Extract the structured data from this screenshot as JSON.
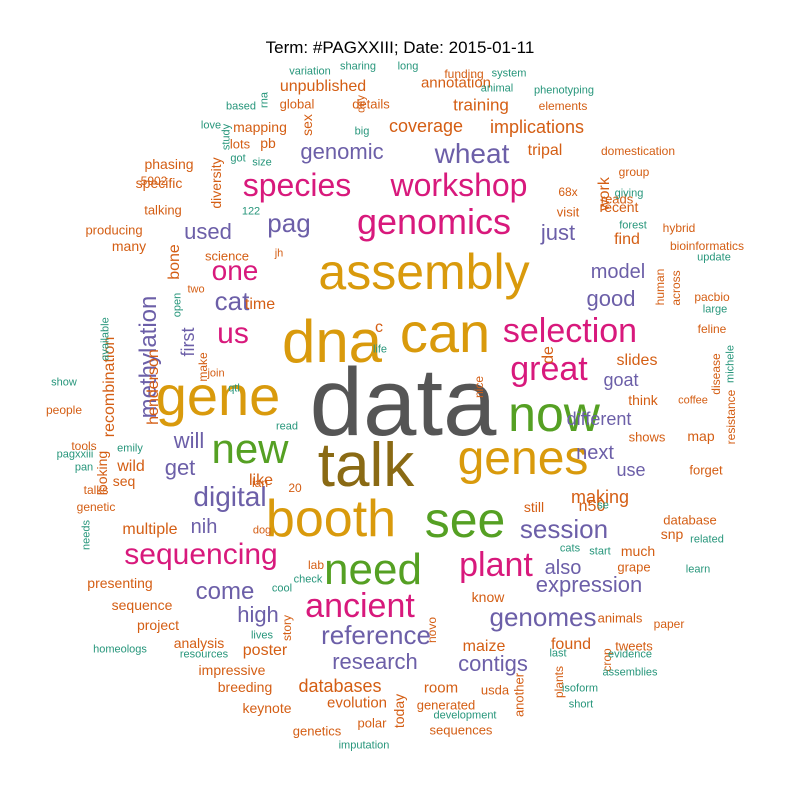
{
  "title": "Term: #PAGXXIII; Date: 2015-01-11",
  "colors": {
    "dark_gray": "#555555",
    "brown": "#8a6a14",
    "gold": "#d99a0c",
    "green": "#55a023",
    "magenta": "#d8197c",
    "purple": "#6c5fa8",
    "orange": "#d45e14",
    "teal": "#27967b"
  },
  "words": [
    {
      "text": "data",
      "color": "dark_gray",
      "weight": 10
    },
    {
      "text": "talk",
      "color": "brown",
      "weight": 7
    },
    {
      "text": "assembly",
      "color": "gold",
      "weight": 7
    },
    {
      "text": "dna",
      "color": "gold",
      "weight": 7
    },
    {
      "text": "can",
      "color": "gold",
      "weight": 7
    },
    {
      "text": "gene",
      "color": "gold",
      "weight": 6
    },
    {
      "text": "booth",
      "color": "gold",
      "weight": 6
    },
    {
      "text": "genes",
      "color": "gold",
      "weight": 6
    },
    {
      "text": "now",
      "color": "green",
      "weight": 6
    },
    {
      "text": "see",
      "color": "green",
      "weight": 6
    },
    {
      "text": "need",
      "color": "green",
      "weight": 5
    },
    {
      "text": "new",
      "color": "green",
      "weight": 5
    },
    {
      "text": "genomics",
      "color": "magenta",
      "weight": 5
    },
    {
      "text": "species",
      "color": "magenta",
      "weight": 4
    },
    {
      "text": "workshop",
      "color": "magenta",
      "weight": 4
    },
    {
      "text": "selection",
      "color": "magenta",
      "weight": 4
    },
    {
      "text": "great",
      "color": "magenta",
      "weight": 4
    },
    {
      "text": "ancient",
      "color": "magenta",
      "weight": 4
    },
    {
      "text": "plant",
      "color": "magenta",
      "weight": 4
    },
    {
      "text": "sequencing",
      "color": "magenta",
      "weight": 4
    },
    {
      "text": "one",
      "color": "magenta",
      "weight": 4
    },
    {
      "text": "us",
      "color": "magenta",
      "weight": 4
    },
    {
      "text": "session",
      "color": "purple",
      "weight": 3
    },
    {
      "text": "methylation",
      "color": "purple",
      "weight": 3
    },
    {
      "text": "wheat",
      "color": "purple",
      "weight": 3
    },
    {
      "text": "digital",
      "color": "purple",
      "weight": 3
    },
    {
      "text": "reference",
      "color": "purple",
      "weight": 3
    },
    {
      "text": "genomes",
      "color": "purple",
      "weight": 3
    },
    {
      "text": "cat",
      "color": "purple",
      "weight": 3
    },
    {
      "text": "pag",
      "color": "purple",
      "weight": 3
    },
    {
      "text": "genomic",
      "color": "purple",
      "weight": 3
    },
    {
      "text": "research",
      "color": "purple",
      "weight": 3
    },
    {
      "text": "contigs",
      "color": "purple",
      "weight": 3
    },
    {
      "text": "come",
      "color": "purple",
      "weight": 3
    },
    {
      "text": "will",
      "color": "purple",
      "weight": 3
    },
    {
      "text": "get",
      "color": "purple",
      "weight": 3
    },
    {
      "text": "high",
      "color": "purple",
      "weight": 3
    },
    {
      "text": "expression",
      "color": "purple",
      "weight": 3
    },
    {
      "text": "good",
      "color": "purple",
      "weight": 3
    },
    {
      "text": "different",
      "color": "purple",
      "weight": 2
    },
    {
      "text": "used",
      "color": "purple",
      "weight": 2
    },
    {
      "text": "just",
      "color": "purple",
      "weight": 2
    },
    {
      "text": "also",
      "color": "purple",
      "weight": 2
    },
    {
      "text": "model",
      "color": "purple",
      "weight": 2
    },
    {
      "text": "goat",
      "color": "purple",
      "weight": 2
    },
    {
      "text": "next",
      "color": "purple",
      "weight": 2
    },
    {
      "text": "use",
      "color": "purple",
      "weight": 2
    },
    {
      "text": "nih",
      "color": "purple",
      "weight": 2
    },
    {
      "text": "first",
      "color": "purple",
      "weight": 2
    },
    {
      "text": "databases",
      "color": "orange",
      "weight": 2
    },
    {
      "text": "coverage",
      "color": "orange",
      "weight": 2
    },
    {
      "text": "implications",
      "color": "orange",
      "weight": 2
    },
    {
      "text": "annotation",
      "color": "orange",
      "weight": 2
    },
    {
      "text": "training",
      "color": "orange",
      "weight": 2
    },
    {
      "text": "unpublished",
      "color": "orange",
      "weight": 2
    },
    {
      "text": "henderson",
      "color": "orange",
      "weight": 2
    },
    {
      "text": "recombination",
      "color": "orange",
      "weight": 2
    },
    {
      "text": "sequence",
      "color": "orange",
      "weight": 2
    },
    {
      "text": "making",
      "color": "orange",
      "weight": 2
    },
    {
      "text": "poster",
      "color": "orange",
      "weight": 2
    },
    {
      "text": "maize",
      "color": "orange",
      "weight": 2
    },
    {
      "text": "evolution",
      "color": "orange",
      "weight": 2
    },
    {
      "text": "keynote",
      "color": "orange",
      "weight": 2
    },
    {
      "text": "breeding",
      "color": "orange",
      "weight": 2
    },
    {
      "text": "impressive",
      "color": "orange",
      "weight": 2
    },
    {
      "text": "analysis",
      "color": "orange",
      "weight": 2
    },
    {
      "text": "project",
      "color": "orange",
      "weight": 2
    },
    {
      "text": "presenting",
      "color": "orange",
      "weight": 2
    },
    {
      "text": "multiple",
      "color": "orange",
      "weight": 2
    },
    {
      "text": "mapping",
      "color": "orange",
      "weight": 2
    },
    {
      "text": "specific",
      "color": "orange",
      "weight": 2
    },
    {
      "text": "phasing",
      "color": "orange",
      "weight": 2
    },
    {
      "text": "talking",
      "color": "orange",
      "weight": 1
    },
    {
      "text": "producing",
      "color": "orange",
      "weight": 1
    },
    {
      "text": "many",
      "color": "orange",
      "weight": 2
    },
    {
      "text": "science",
      "color": "orange",
      "weight": 1
    },
    {
      "text": "time",
      "color": "orange",
      "weight": 2
    },
    {
      "text": "bone",
      "color": "orange",
      "weight": 2
    },
    {
      "text": "diversity",
      "color": "orange",
      "weight": 2
    },
    {
      "text": "wild",
      "color": "orange",
      "weight": 2
    },
    {
      "text": "seq",
      "color": "orange",
      "weight": 2
    },
    {
      "text": "like",
      "color": "orange",
      "weight": 2
    },
    {
      "text": "looking",
      "color": "orange",
      "weight": 2
    },
    {
      "text": "slides",
      "color": "orange",
      "weight": 2
    },
    {
      "text": "find",
      "color": "orange",
      "weight": 2
    },
    {
      "text": "work",
      "color": "orange",
      "weight": 2
    },
    {
      "text": "tripal",
      "color": "orange",
      "weight": 2
    },
    {
      "text": "pb",
      "color": "orange",
      "weight": 2
    },
    {
      "text": "sex",
      "color": "orange",
      "weight": 2
    },
    {
      "text": "details",
      "color": "orange",
      "weight": 1
    },
    {
      "text": "global",
      "color": "orange",
      "weight": 1
    },
    {
      "text": "lots",
      "color": "orange",
      "weight": 1
    },
    {
      "text": "recent",
      "color": "orange",
      "weight": 1
    },
    {
      "text": "visit",
      "color": "orange",
      "weight": 1
    },
    {
      "text": "much",
      "color": "orange",
      "weight": 2
    },
    {
      "text": "know",
      "color": "orange",
      "weight": 2
    },
    {
      "text": "found",
      "color": "orange",
      "weight": 2
    },
    {
      "text": "room",
      "color": "orange",
      "weight": 2
    },
    {
      "text": "generated",
      "color": "orange",
      "weight": 1
    },
    {
      "text": "usda",
      "color": "orange",
      "weight": 1
    },
    {
      "text": "today",
      "color": "orange",
      "weight": 1
    },
    {
      "text": "another",
      "color": "orange",
      "weight": 1
    },
    {
      "text": "genetics",
      "color": "orange",
      "weight": 1
    },
    {
      "text": "sequences",
      "color": "orange",
      "weight": 1
    },
    {
      "text": "polar",
      "color": "orange",
      "weight": 1
    },
    {
      "text": "story",
      "color": "orange",
      "weight": 1
    },
    {
      "text": "novo",
      "color": "orange",
      "weight": 1
    },
    {
      "text": "still",
      "color": "orange",
      "weight": 2
    },
    {
      "text": "n50",
      "color": "orange",
      "weight": 2
    },
    {
      "text": "de",
      "color": "orange",
      "weight": 2
    },
    {
      "text": "c",
      "color": "orange",
      "weight": 2
    },
    {
      "text": "grape",
      "color": "orange",
      "weight": 1
    },
    {
      "text": "database",
      "color": "orange",
      "weight": 1
    },
    {
      "text": "snp",
      "color": "orange",
      "weight": 1
    },
    {
      "text": "animals",
      "color": "orange",
      "weight": 1
    },
    {
      "text": "paper",
      "color": "orange",
      "weight": 1
    },
    {
      "text": "shows",
      "color": "orange",
      "weight": 1
    },
    {
      "text": "map",
      "color": "orange",
      "weight": 1
    },
    {
      "text": "forget",
      "color": "orange",
      "weight": 1
    },
    {
      "text": "think",
      "color": "orange",
      "weight": 1
    },
    {
      "text": "nice",
      "color": "orange",
      "weight": 1
    },
    {
      "text": "tweets",
      "color": "orange",
      "weight": 1
    },
    {
      "text": "crop",
      "color": "orange",
      "weight": 1
    },
    {
      "text": "plants",
      "color": "orange",
      "weight": 1
    },
    {
      "text": "human",
      "color": "orange",
      "weight": 1
    },
    {
      "text": "across",
      "color": "orange",
      "weight": 1
    },
    {
      "text": "disease",
      "color": "orange",
      "weight": 1
    },
    {
      "text": "resistance",
      "color": "orange",
      "weight": 1
    },
    {
      "text": "feline",
      "color": "orange",
      "weight": 1
    },
    {
      "text": "pacbio",
      "color": "orange",
      "weight": 1
    },
    {
      "text": "bioinformatics",
      "color": "orange",
      "weight": 1
    },
    {
      "text": "hybrid",
      "color": "orange",
      "weight": 1
    },
    {
      "text": "reads",
      "color": "orange",
      "weight": 1
    },
    {
      "text": "group",
      "color": "orange",
      "weight": 1
    },
    {
      "text": "domestication",
      "color": "orange",
      "weight": 1
    },
    {
      "text": "68x",
      "color": "orange",
      "weight": 1
    },
    {
      "text": "funding",
      "color": "orange",
      "weight": 1
    },
    {
      "text": "elements",
      "color": "orange",
      "weight": 1
    },
    {
      "text": "day",
      "color": "orange",
      "weight": 1
    },
    {
      "text": "5902",
      "color": "orange",
      "weight": 1
    },
    {
      "text": "people",
      "color": "orange",
      "weight": 1
    },
    {
      "text": "tools",
      "color": "orange",
      "weight": 1
    },
    {
      "text": "talks",
      "color": "orange",
      "weight": 1
    },
    {
      "text": "genetic",
      "color": "orange",
      "weight": 1
    },
    {
      "text": "ian",
      "color": "orange",
      "weight": 1
    },
    {
      "text": "20",
      "color": "orange",
      "weight": 1
    },
    {
      "text": "dog",
      "color": "orange",
      "weight": 1
    },
    {
      "text": "lab",
      "color": "orange",
      "weight": 1
    },
    {
      "text": "make",
      "color": "orange",
      "weight": 1
    },
    {
      "text": "join",
      "color": "orange",
      "weight": 1
    },
    {
      "text": "two",
      "color": "orange",
      "weight": 1
    },
    {
      "text": "jh",
      "color": "orange",
      "weight": 1
    },
    {
      "text": "coffee",
      "color": "orange",
      "weight": 1
    },
    {
      "text": "variation",
      "color": "teal",
      "weight": 1
    },
    {
      "text": "sharing",
      "color": "teal",
      "weight": 1
    },
    {
      "text": "long",
      "color": "teal",
      "weight": 1
    },
    {
      "text": "system",
      "color": "teal",
      "weight": 1
    },
    {
      "text": "animal",
      "color": "teal",
      "weight": 1
    },
    {
      "text": "phenotyping",
      "color": "teal",
      "weight": 1
    },
    {
      "text": "based",
      "color": "teal",
      "weight": 1
    },
    {
      "text": "rna",
      "color": "teal",
      "weight": 1
    },
    {
      "text": "big",
      "color": "teal",
      "weight": 1
    },
    {
      "text": "love",
      "color": "teal",
      "weight": 1
    },
    {
      "text": "study",
      "color": "teal",
      "weight": 1
    },
    {
      "text": "got",
      "color": "teal",
      "weight": 1
    },
    {
      "text": "size",
      "color": "teal",
      "weight": 1
    },
    {
      "text": "giving",
      "color": "teal",
      "weight": 1
    },
    {
      "text": "forest",
      "color": "teal",
      "weight": 1
    },
    {
      "text": "122",
      "color": "teal",
      "weight": 1
    },
    {
      "text": "update",
      "color": "teal",
      "weight": 1
    },
    {
      "text": "large",
      "color": "teal",
      "weight": 1
    },
    {
      "text": "open",
      "color": "teal",
      "weight": 1
    },
    {
      "text": "available",
      "color": "teal",
      "weight": 1
    },
    {
      "text": "qtl",
      "color": "teal",
      "weight": 1
    },
    {
      "text": "life",
      "color": "teal",
      "weight": 1
    },
    {
      "text": "michele",
      "color": "teal",
      "weight": 1
    },
    {
      "text": "show",
      "color": "teal",
      "weight": 1
    },
    {
      "text": "read",
      "color": "teal",
      "weight": 1
    },
    {
      "text": "emily",
      "color": "teal",
      "weight": 1
    },
    {
      "text": "pagxxiii",
      "color": "teal",
      "weight": 1
    },
    {
      "text": "pan",
      "color": "teal",
      "weight": 1
    },
    {
      "text": "needs",
      "color": "teal",
      "weight": 1
    },
    {
      "text": "se",
      "color": "teal",
      "weight": 1
    },
    {
      "text": "cats",
      "color": "teal",
      "weight": 1
    },
    {
      "text": "start",
      "color": "teal",
      "weight": 1
    },
    {
      "text": "related",
      "color": "teal",
      "weight": 1
    },
    {
      "text": "learn",
      "color": "teal",
      "weight": 1
    },
    {
      "text": "check",
      "color": "teal",
      "weight": 1
    },
    {
      "text": "cool",
      "color": "teal",
      "weight": 1
    },
    {
      "text": "homeologs",
      "color": "teal",
      "weight": 1
    },
    {
      "text": "resources",
      "color": "teal",
      "weight": 1
    },
    {
      "text": "lives",
      "color": "teal",
      "weight": 1
    },
    {
      "text": "evidence",
      "color": "teal",
      "weight": 1
    },
    {
      "text": "assemblies",
      "color": "teal",
      "weight": 1
    },
    {
      "text": "isoform",
      "color": "teal",
      "weight": 1
    },
    {
      "text": "short",
      "color": "teal",
      "weight": 1
    },
    {
      "text": "last",
      "color": "teal",
      "weight": 1
    },
    {
      "text": "development",
      "color": "teal",
      "weight": 1
    },
    {
      "text": "imputation",
      "color": "teal",
      "weight": 1
    }
  ]
}
